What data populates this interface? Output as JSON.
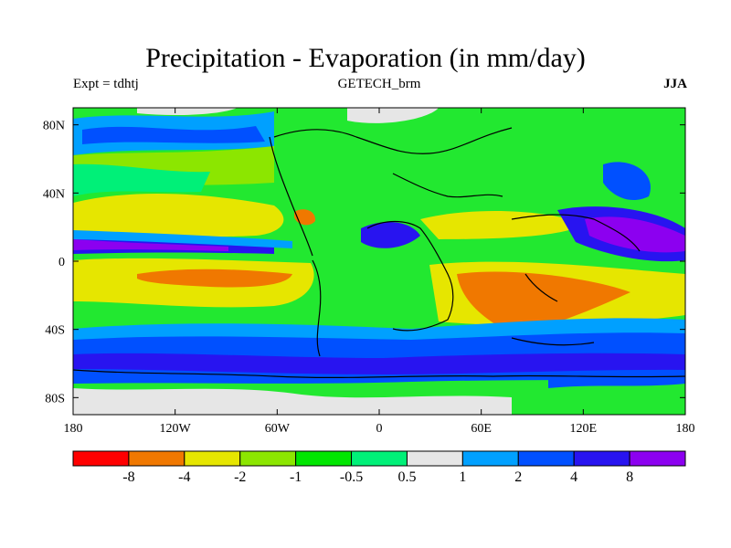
{
  "title": "Precipitation - Evaporation (in mm/day)",
  "subtitle_left": "Expt = tdhtj",
  "subtitle_center": "GETECH_brm",
  "subtitle_right": "JJA",
  "x_ticks": [
    "180",
    "120W",
    "60W",
    "0",
    "60E",
    "120E",
    "180"
  ],
  "y_ticks": [
    "80N",
    "40N",
    "0",
    "40S",
    "80S"
  ],
  "colorbar": {
    "labels": [
      "-8",
      "-4",
      "-2",
      "-1",
      "-0.5",
      "0.5",
      "1",
      "2",
      "4",
      "8"
    ],
    "colors": [
      "#ff0000",
      "#f07800",
      "#e6e600",
      "#8ce600",
      "#00e600",
      "#00f078",
      "#e6e6e6",
      "#00a0ff",
      "#0050ff",
      "#2814f0",
      "#8c00f0"
    ]
  },
  "colors": {
    "background_green": "#22e830",
    "dry_yellow": "#e6e600",
    "dry_orange": "#f07800",
    "wet_cyan": "#00a0ff",
    "wet_blue": "#0050ff",
    "wet_indigo": "#2814f0",
    "wet_purple": "#8c00f0",
    "grey": "#e6e6e6",
    "lightgreen": "#8ce600",
    "teal": "#00f078"
  }
}
